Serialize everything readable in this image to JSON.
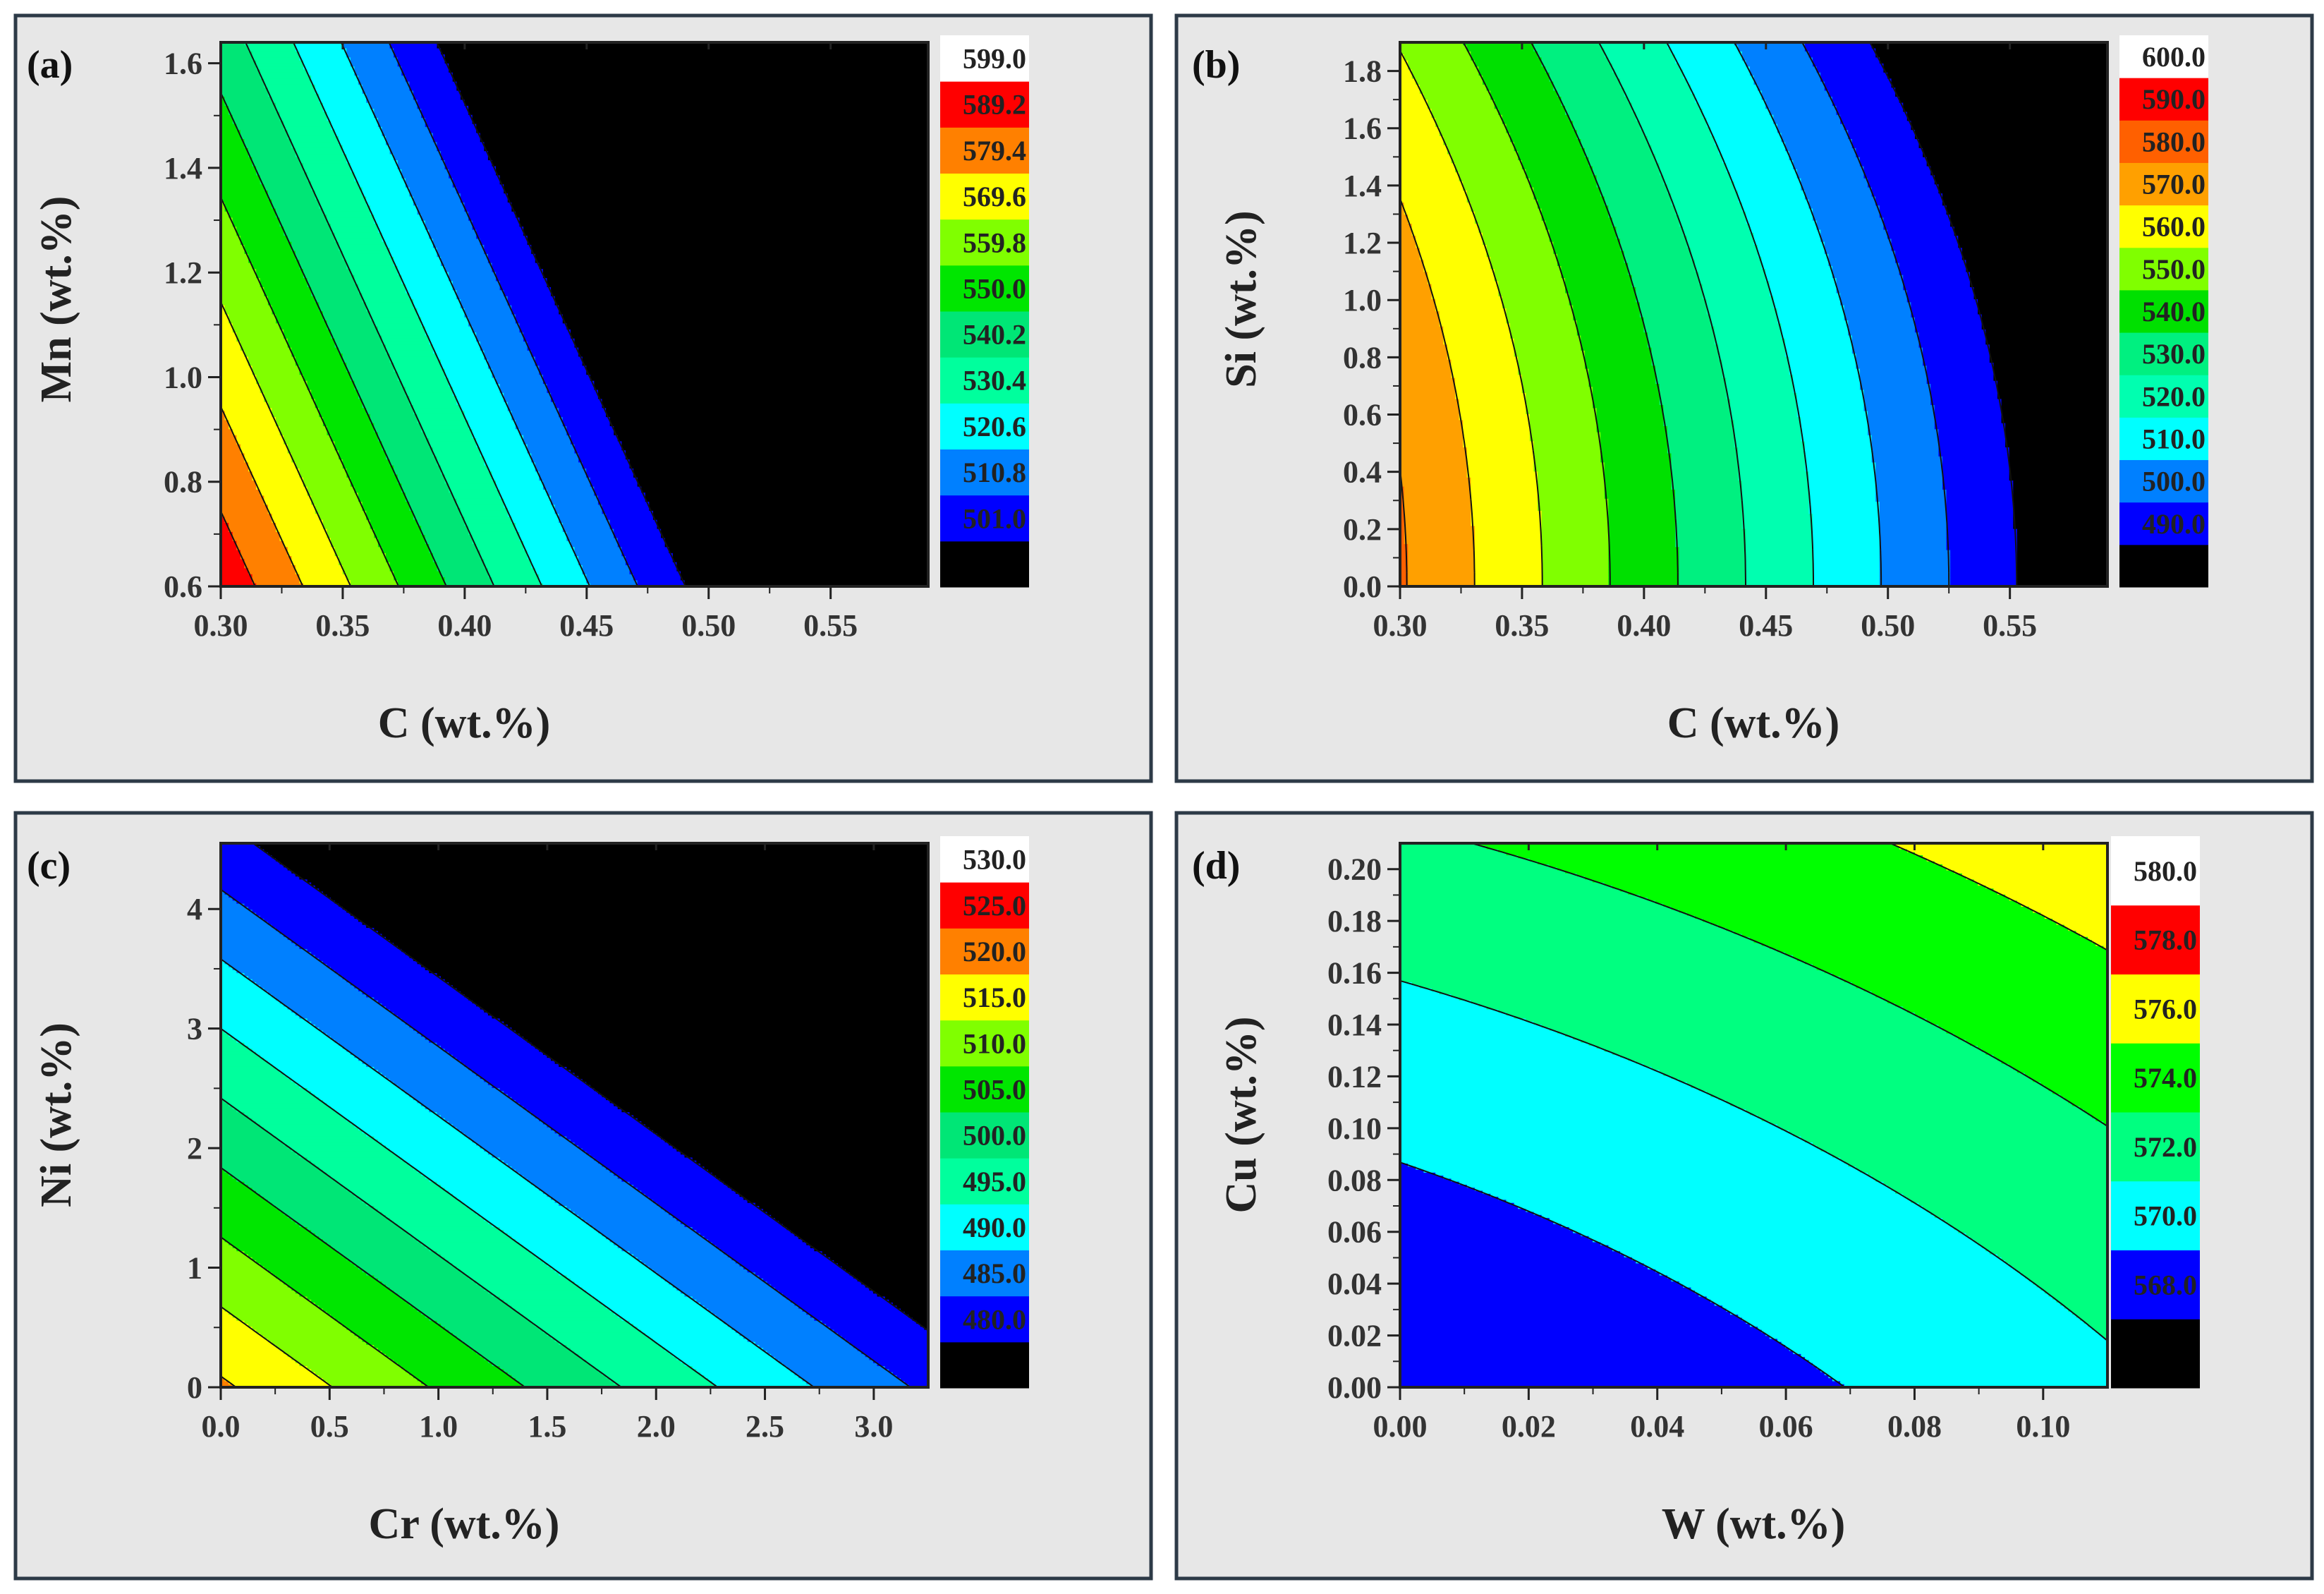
{
  "chart_data": [
    {
      "type": "contour",
      "panel_label": "(a)",
      "xlabel": "C (wt.%)",
      "ylabel": "Mn (wt.%)",
      "xlim": [
        0.3,
        0.59
      ],
      "ylim": [
        0.6,
        1.64
      ],
      "xticks": [
        0.3,
        0.35,
        0.4,
        0.45,
        0.5,
        0.55
      ],
      "xtick_labels": [
        "0.30",
        "0.35",
        "0.40",
        "0.45",
        "0.50",
        "0.55"
      ],
      "yticks": [
        0.6,
        0.8,
        1.0,
        1.2,
        1.4,
        1.6
      ],
      "ytick_labels": [
        "0.6",
        "0.8",
        "1.0",
        "1.2",
        "1.4",
        "1.6"
      ],
      "model": {
        "kind": "linear",
        "c0": 775.64,
        "cx": -500,
        "cy": -49
      },
      "levels": [
        501.0,
        510.8,
        520.6,
        530.4,
        540.2,
        550.0,
        559.8,
        569.6,
        579.4,
        589.2,
        599.0
      ],
      "level_labels": [
        "501.0",
        "510.8",
        "520.6",
        "530.4",
        "540.2",
        "550.0",
        "559.8",
        "569.6",
        "579.4",
        "589.2",
        "599.0"
      ],
      "colors": [
        "#000000",
        "#0000ff",
        "#0080ff",
        "#00ffff",
        "#00ff9d",
        "#00e676",
        "#00e600",
        "#80ff00",
        "#ffff00",
        "#ff8000",
        "#ff0000",
        "#ffffff"
      ]
    },
    {
      "type": "contour",
      "panel_label": "(b)",
      "xlabel": "C (wt.%)",
      "ylabel": "Si (wt.%)",
      "xlim": [
        0.3,
        0.59
      ],
      "ylim": [
        0.0,
        1.9
      ],
      "xticks": [
        0.3,
        0.35,
        0.4,
        0.45,
        0.5,
        0.55
      ],
      "xtick_labels": [
        "0.30",
        "0.35",
        "0.40",
        "0.45",
        "0.50",
        "0.55"
      ],
      "yticks": [
        0.0,
        0.2,
        0.4,
        0.6,
        0.8,
        1.0,
        1.2,
        1.4,
        1.6,
        1.8
      ],
      "ytick_labels": [
        "0.0",
        "0.2",
        "0.4",
        "0.6",
        "0.8",
        "1.0",
        "1.2",
        "1.4",
        "1.6",
        "1.8"
      ],
      "model": {
        "kind": "curved-x",
        "c0": 689,
        "cx": -360,
        "cy": 0,
        "cyy": -6,
        "cxy": 0
      },
      "levels": [
        490.0,
        500.0,
        510.0,
        520.0,
        530.0,
        540.0,
        550.0,
        560.0,
        570.0,
        580.0,
        590.0,
        600.0
      ],
      "level_labels": [
        "490.0",
        "500.0",
        "510.0",
        "520.0",
        "530.0",
        "540.0",
        "550.0",
        "560.0",
        "570.0",
        "580.0",
        "590.0",
        "600.0"
      ],
      "colors": [
        "#000000",
        "#0000ff",
        "#0080ff",
        "#00ffff",
        "#00ffb0",
        "#00f080",
        "#00e000",
        "#80ff00",
        "#ffff00",
        "#ffa000",
        "#ff6000",
        "#ff0000",
        "#ffffff"
      ]
    },
    {
      "type": "contour",
      "panel_label": "(c)",
      "xlabel": "Cr (wt.%)",
      "ylabel": "Ni (wt.%)",
      "xlim": [
        0.0,
        3.25
      ],
      "ylim": [
        0.0,
        4.55
      ],
      "xticks": [
        0.0,
        0.5,
        1.0,
        1.5,
        2.0,
        2.5,
        3.0
      ],
      "xtick_labels": [
        "0.0",
        "0.5",
        "1.0",
        "1.5",
        "2.0",
        "2.5",
        "3.0"
      ],
      "yticks": [
        0,
        1,
        2,
        3,
        4
      ],
      "ytick_labels": [
        "0",
        "1",
        "2",
        "3",
        "4"
      ],
      "model": {
        "kind": "linear",
        "c0": 520.8,
        "cx": -11.3,
        "cy": -8.6
      },
      "levels": [
        480.0,
        485.0,
        490.0,
        495.0,
        500.0,
        505.0,
        510.0,
        515.0,
        520.0,
        525.0,
        530.0
      ],
      "level_labels": [
        "480.0",
        "485.0",
        "490.0",
        "495.0",
        "500.0",
        "505.0",
        "510.0",
        "515.0",
        "520.0",
        "525.0",
        "530.0"
      ],
      "colors": [
        "#000000",
        "#0000ff",
        "#0080ff",
        "#00ffff",
        "#00ff9d",
        "#00e676",
        "#00e600",
        "#80ff00",
        "#ffff00",
        "#ff8000",
        "#ff0000",
        "#ffffff"
      ]
    },
    {
      "type": "contour",
      "panel_label": "(d)",
      "xlabel": "W (wt.%)",
      "ylabel": "Cu (wt.%)",
      "xlim": [
        0.0,
        0.11
      ],
      "ylim": [
        0.0,
        0.21
      ],
      "xticks": [
        0.0,
        0.02,
        0.04,
        0.06,
        0.08,
        0.1
      ],
      "xtick_labels": [
        "0.00",
        "0.02",
        "0.04",
        "0.06",
        "0.08",
        "0.10"
      ],
      "yticks": [
        0.0,
        0.02,
        0.04,
        0.06,
        0.08,
        0.1,
        0.12,
        0.14,
        0.16,
        0.18,
        0.2
      ],
      "ytick_labels": [
        "0.00",
        "0.02",
        "0.04",
        "0.06",
        "0.08",
        "0.10",
        "0.12",
        "0.14",
        "0.16",
        "0.18",
        "0.20"
      ],
      "model": {
        "kind": "quadratic",
        "c0": 568.0,
        "cx": 22,
        "cy": 20,
        "cxx": 100,
        "cyy": 35,
        "cxy": 0
      },
      "levels": [
        568.0,
        570.0,
        572.0,
        574.0,
        576.0,
        578.0,
        580.0
      ],
      "level_labels": [
        "568.0",
        "570.0",
        "572.0",
        "574.0",
        "576.0",
        "578.0",
        "580.0"
      ],
      "colors": [
        "#000000",
        "#0000ff",
        "#00ffff",
        "#00ff80",
        "#00ff00",
        "#ffff00",
        "#ff0000",
        "#ffffff"
      ]
    }
  ]
}
